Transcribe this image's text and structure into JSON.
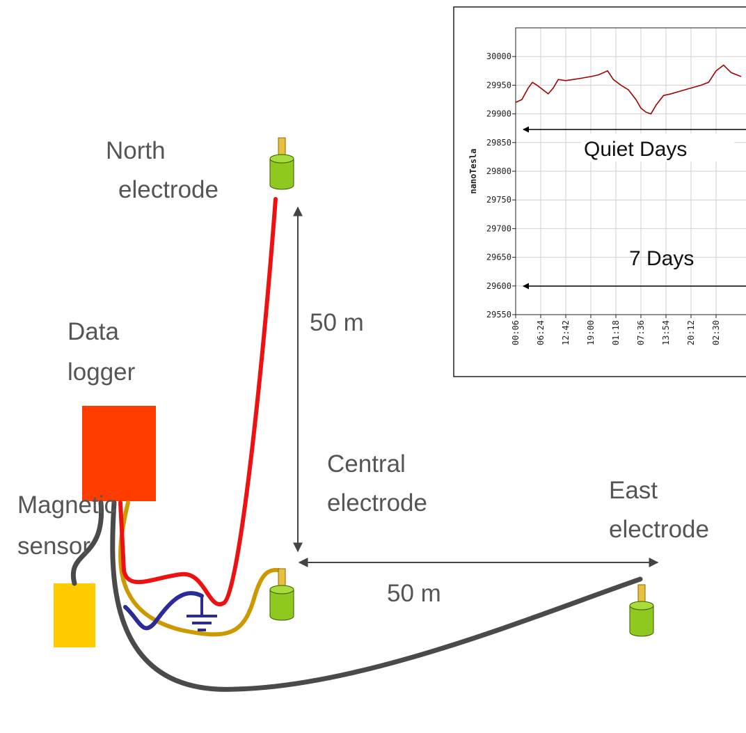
{
  "labels": {
    "north": [
      "North",
      "electrode"
    ],
    "logger": [
      "Data",
      "logger"
    ],
    "central": [
      "Central",
      "electrode"
    ],
    "east": [
      "East",
      "electrode"
    ],
    "sensor": [
      "Magnetic",
      "sensor"
    ],
    "distance_north": "50 m",
    "distance_east": "50 m"
  },
  "chart_data": {
    "type": "line",
    "y_label": "nanoTesla",
    "annotations": [
      "Quiet Days",
      "7 Days"
    ],
    "x": [
      0,
      0.25,
      0.5,
      0.67,
      0.85,
      1,
      1.3,
      1.5,
      1.7,
      2,
      2.3,
      2.6,
      3,
      3.3,
      3.67,
      3.9,
      4.2,
      4.5,
      4.8,
      5,
      5.2,
      5.4,
      5.6,
      5.9,
      6.2,
      6.6,
      7,
      7.4,
      7.7,
      8,
      8.3,
      8.6,
      9
    ],
    "values": [
      29920,
      29925,
      29945,
      29955,
      29950,
      29945,
      29935,
      29945,
      29960,
      29958,
      29960,
      29962,
      29965,
      29968,
      29975,
      29960,
      29950,
      29942,
      29925,
      29910,
      29903,
      29900,
      29915,
      29932,
      29935,
      29940,
      29945,
      29950,
      29955,
      29975,
      29985,
      29972,
      29965
    ],
    "color": "#a00000",
    "xlim": [
      0,
      9
    ],
    "xticks": [
      {
        "value": 0,
        "label": "00:06"
      },
      {
        "value": 1,
        "label": "06:24"
      },
      {
        "value": 2,
        "label": "12:42"
      },
      {
        "value": 3,
        "label": "19:00"
      },
      {
        "value": 4,
        "label": "01:18"
      },
      {
        "value": 5,
        "label": "07:36"
      },
      {
        "value": 6,
        "label": "13:54"
      },
      {
        "value": 7,
        "label": "20:12"
      },
      {
        "value": 8,
        "label": "02:30"
      }
    ],
    "ylim": [
      29550,
      30050
    ],
    "yticks": [
      29550,
      29600,
      29650,
      29700,
      29750,
      29800,
      29850,
      29900,
      29950,
      30000
    ],
    "grid": true
  }
}
